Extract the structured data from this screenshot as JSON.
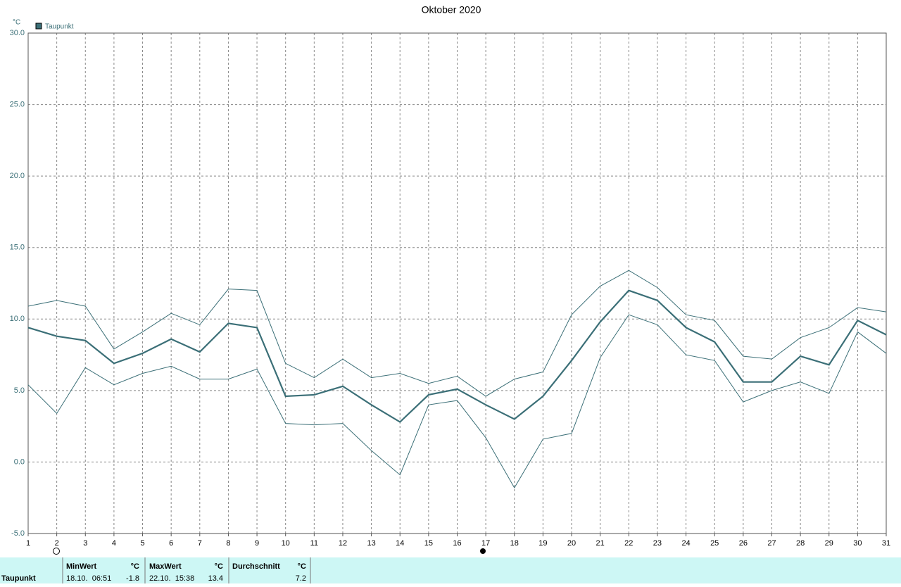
{
  "chart_data": {
    "type": "line",
    "title": "Oktober 2020",
    "y_unit": "°C",
    "x": [
      1,
      2,
      3,
      4,
      5,
      6,
      7,
      8,
      9,
      10,
      11,
      12,
      13,
      14,
      15,
      16,
      17,
      18,
      19,
      20,
      21,
      22,
      23,
      24,
      25,
      26,
      27,
      28,
      29,
      30,
      31
    ],
    "xlim": [
      1,
      31
    ],
    "xticks": [
      1,
      2,
      3,
      4,
      5,
      6,
      7,
      8,
      9,
      10,
      11,
      12,
      13,
      14,
      15,
      16,
      17,
      18,
      19,
      20,
      21,
      22,
      23,
      24,
      25,
      26,
      27,
      28,
      29,
      30,
      31
    ],
    "ylim": [
      -5,
      30
    ],
    "yticks": [
      {
        "value": -5,
        "label": "-5.0"
      },
      {
        "value": 0,
        "label": "0.0"
      },
      {
        "value": 5,
        "label": "5.0"
      },
      {
        "value": 10,
        "label": "10.0"
      },
      {
        "value": 15,
        "label": "15.0"
      },
      {
        "value": 20,
        "label": "20.0"
      },
      {
        "value": 25,
        "label": "25.0"
      },
      {
        "value": 30,
        "label": "30.0"
      }
    ],
    "grid": true,
    "series": [
      {
        "name": "Taupunkt",
        "color": "#3b6f77",
        "values": [
          9.4,
          8.8,
          8.5,
          6.9,
          7.6,
          8.6,
          7.7,
          9.7,
          9.4,
          4.6,
          4.7,
          5.3,
          4.0,
          2.8,
          4.7,
          5.1,
          4.0,
          3.0,
          4.6,
          7.1,
          9.8,
          12.0,
          11.3,
          9.4,
          8.4,
          5.6,
          5.6,
          7.4,
          6.8,
          9.9,
          8.9
        ]
      },
      {
        "color": "#3b6f77",
        "values": [
          10.9,
          11.3,
          10.9,
          7.9,
          9.1,
          10.4,
          9.6,
          12.1,
          12.0,
          6.9,
          5.9,
          7.2,
          5.9,
          6.2,
          5.5,
          6.0,
          4.6,
          5.8,
          6.3,
          10.3,
          12.3,
          13.4,
          12.2,
          10.3,
          9.9,
          7.4,
          7.2,
          8.7,
          9.4,
          10.8,
          10.5
        ]
      },
      {
        "color": "#3b6f77",
        "values": [
          5.4,
          3.4,
          6.6,
          5.4,
          6.2,
          6.7,
          5.8,
          5.8,
          6.5,
          2.7,
          2.6,
          2.7,
          0.8,
          -0.9,
          4.0,
          4.3,
          1.7,
          -1.8,
          1.6,
          2.0,
          7.3,
          10.3,
          9.6,
          7.5,
          7.1,
          4.2,
          5.0,
          5.6,
          4.8,
          9.1,
          7.6
        ]
      }
    ]
  },
  "stats": {
    "row_label": "Taupunkt",
    "columns": [
      {
        "header": "MinWert",
        "unit": "°C",
        "when": "18.10.  06:51",
        "value": -1.8
      },
      {
        "header": "MaxWert",
        "unit": "°C",
        "when": "22.10.  15:38",
        "value": 13.4
      },
      {
        "header": "Durchschnitt",
        "unit": "°C",
        "value": 7.2
      }
    ]
  }
}
